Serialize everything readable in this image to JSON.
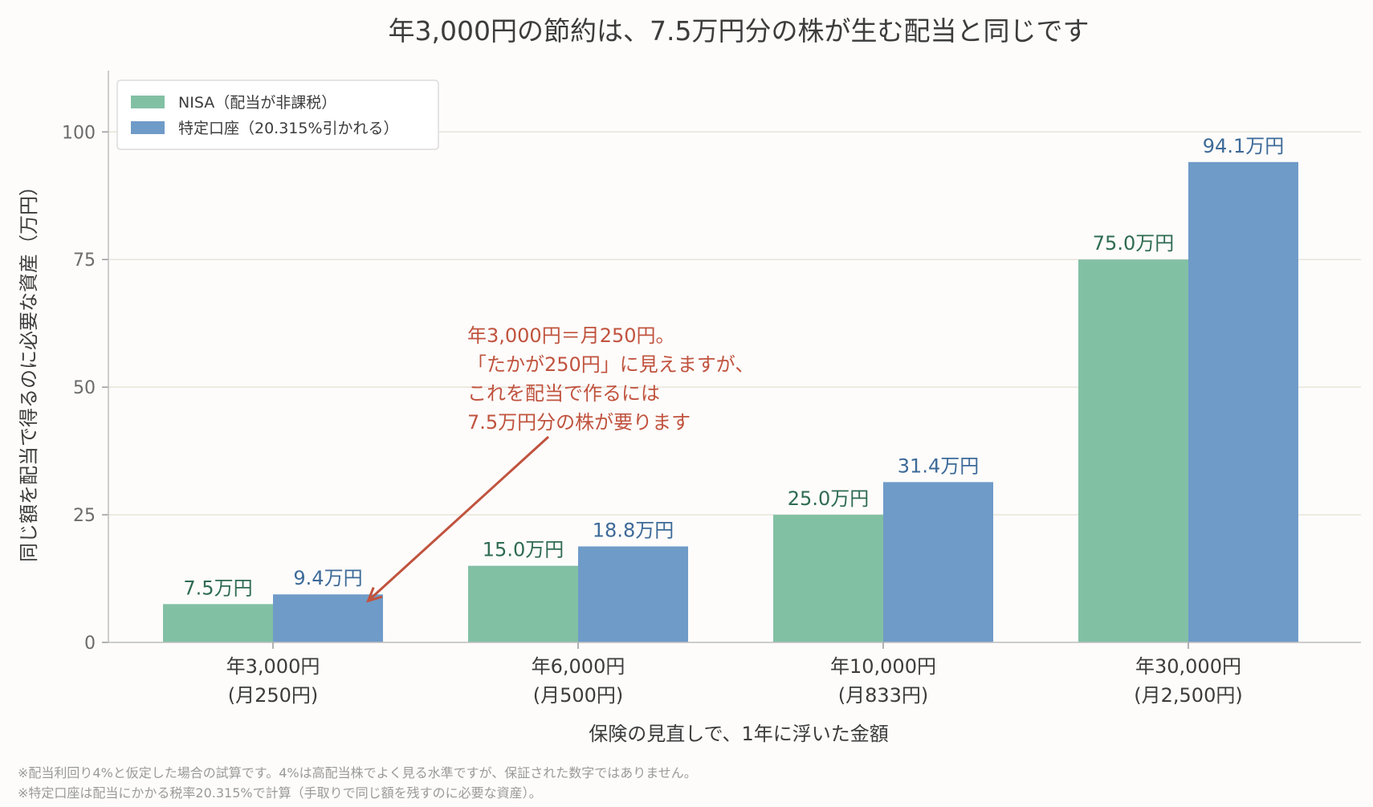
{
  "chart_data": {
    "type": "bar",
    "title": "年3,000円の節約は、7.5万円分の株が生む配当と同じです",
    "xlabel": "保険の見直しで、1年に浮いた金額",
    "ylabel": "同じ額を配当で得るのに必要な資産（万円）",
    "ylim": [
      0,
      112
    ],
    "yticks": [
      0,
      25,
      50,
      75,
      100
    ],
    "grid": true,
    "legend_position": "top-left",
    "categories": [
      [
        "年3,000円",
        "(月250円)"
      ],
      [
        "年6,000円",
        "(月500円)"
      ],
      [
        "年10,000円",
        "(月833円)"
      ],
      [
        "年30,000円",
        "(月2,500円)"
      ]
    ],
    "series": [
      {
        "name": "NISA（配当が非課税）",
        "color": "#82c0a4",
        "label_color": "#2e6b50",
        "values": [
          7.5,
          15.0,
          25.0,
          75.0
        ],
        "labels": [
          "7.5万円",
          "15.0万円",
          "25.0万円",
          "75.0万円"
        ]
      },
      {
        "name": "特定口座（20.315%引かれる）",
        "color": "#6f9bc8",
        "label_color": "#3d6a98",
        "values": [
          9.4,
          18.8,
          31.4,
          94.1
        ],
        "labels": [
          "9.4万円",
          "18.8万円",
          "31.4万円",
          "94.1万円"
        ]
      }
    ],
    "annotation": {
      "lines": [
        "年3,000円＝月250円。",
        "「たかが250円」に見えますが、",
        "これを配当で作るには",
        "7.5万円分の株が要ります"
      ],
      "color": "#c0533e",
      "arrow_target_category": 0,
      "arrow_target_series": 1,
      "arrow_target_value": 9.4
    },
    "footnotes": [
      "※配当利回り4%と仮定した場合の試算です。4%は高配当株でよく見る水準ですが、保証された数字ではありません。",
      "※特定口座は配当にかかる税率20.315%で計算（手取りで同じ額を残すのに必要な資産）。"
    ]
  }
}
